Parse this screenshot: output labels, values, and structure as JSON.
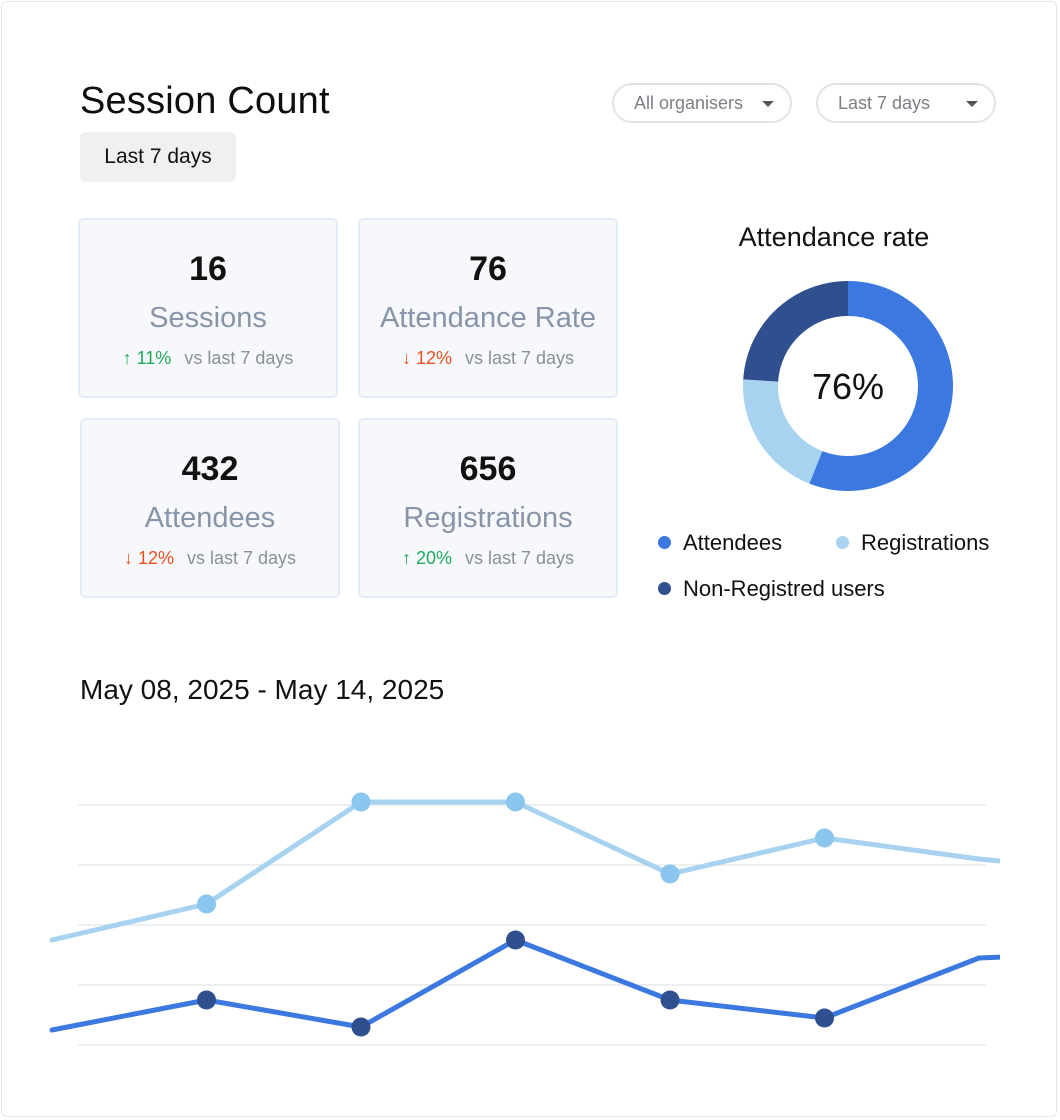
{
  "header": {
    "title": "Session Count",
    "period_badge": "Last 7 days",
    "organiser_filter": "All organisers",
    "range_filter": "Last 7 days"
  },
  "stats": [
    {
      "value": "16",
      "label": "Sessions",
      "arrow": "↑",
      "change": "11%",
      "direction": "up",
      "compare": "vs last 7 days"
    },
    {
      "value": "76",
      "label": "Attendance Rate",
      "arrow": "↓",
      "change": "12%",
      "direction": "down",
      "compare": "vs last 7 days"
    },
    {
      "value": "432",
      "label": "Attendees",
      "arrow": "↓",
      "change": "12%",
      "direction": "down",
      "compare": "vs last 7 days"
    },
    {
      "value": "656",
      "label": "Registrations",
      "arrow": "↑",
      "change": "20%",
      "direction": "up",
      "compare": "vs last 7 days"
    }
  ],
  "colors": {
    "attendees": "#3b78e0",
    "registrations": "#a7d3f0",
    "non_registered": "#2f4f8f",
    "up": "#1fab5a",
    "down": "#e8511d"
  },
  "chart_data": [
    {
      "type": "pie",
      "title": "Attendance rate",
      "center_label": "76%",
      "labels": [
        "Attendees",
        "Registrations",
        "Non-Registred users"
      ],
      "values": [
        56,
        20,
        24
      ]
    },
    {
      "type": "line",
      "title": "May 08, 2025 - May 14, 2025",
      "x": [
        1,
        2,
        3,
        4,
        5,
        6,
        7,
        8
      ],
      "series": [
        {
          "name": "Registrations",
          "values": [
            1.75,
            2.35,
            4.05,
            4.05,
            2.85,
            3.45,
            3.1,
            2.85
          ]
        },
        {
          "name": "Attendees",
          "values": [
            0.25,
            0.75,
            0.3,
            1.75,
            0.75,
            0.45,
            1.45,
            1.55
          ]
        }
      ],
      "markers": {
        "Registrations": [
          1,
          2,
          3,
          4,
          5
        ],
        "Attendees": [
          1,
          2,
          3,
          4,
          5
        ]
      },
      "ylim": [
        0,
        4
      ],
      "grid": true
    }
  ]
}
